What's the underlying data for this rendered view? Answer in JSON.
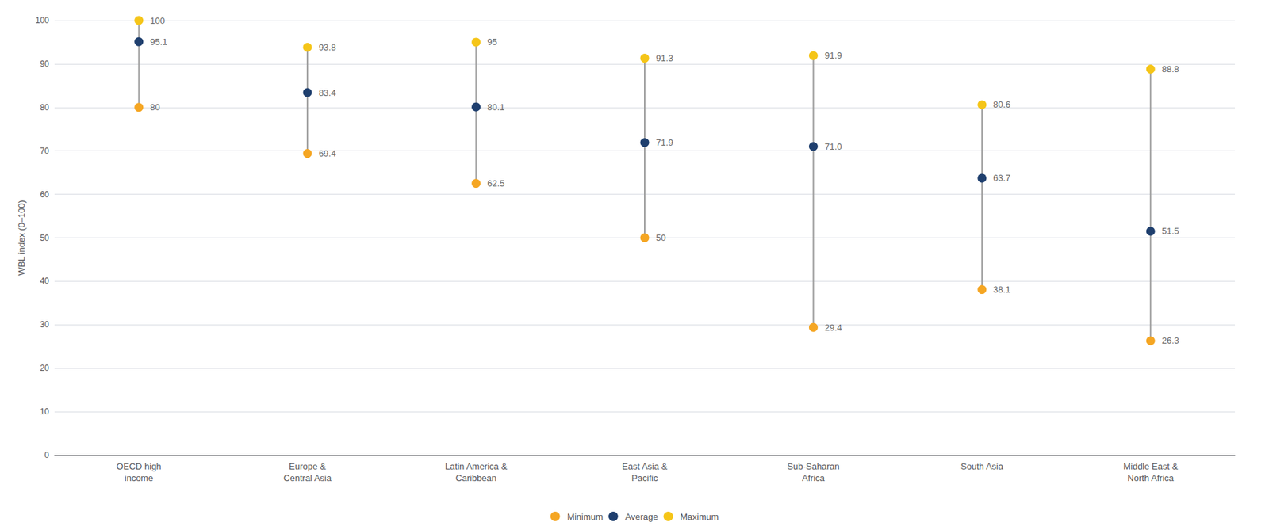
{
  "chart_data": {
    "type": "dumbbell",
    "categories": [
      "OECD high\nincome",
      "Europe &\nCentral Asia",
      "Latin America &\nCaribbean",
      "East Asia &\nPacific",
      "Sub-Saharan\nAfrica",
      "South Asia",
      "Middle East &\nNorth Africa"
    ],
    "series": [
      {
        "name": "Minimum",
        "color": "#F5A623",
        "values": [
          80.0,
          69.4,
          62.5,
          50.0,
          29.4,
          38.1,
          26.3
        ],
        "value_labels": [
          "80",
          "69.4",
          "62.5",
          "50",
          "29.4",
          "38.1",
          "26.3"
        ]
      },
      {
        "name": "Average",
        "color": "#1F3F6E",
        "values": [
          95.1,
          83.4,
          80.1,
          71.9,
          71.0,
          63.7,
          51.5
        ],
        "value_labels": [
          "95.1",
          "83.4",
          "80.1",
          "71.9",
          "71.0",
          "63.7",
          "51.5"
        ]
      },
      {
        "name": "Maximum",
        "color": "#F5C518",
        "values": [
          100.0,
          93.8,
          95.0,
          91.3,
          91.9,
          80.6,
          88.8
        ],
        "value_labels": [
          "100",
          "93.8",
          "95",
          "91.3",
          "91.9",
          "80.6",
          "88.8"
        ]
      }
    ],
    "color": "#9E9E9E",
    "ylabel": "WBL index (0–100)",
    "ylim": [
      0,
      100
    ],
    "yticks": [
      0,
      10,
      20,
      30,
      40,
      50,
      60,
      70,
      80,
      90,
      100
    ],
    "grid": true,
    "legend": "bottom",
    "data_labels": true,
    "marker": "circle"
  }
}
